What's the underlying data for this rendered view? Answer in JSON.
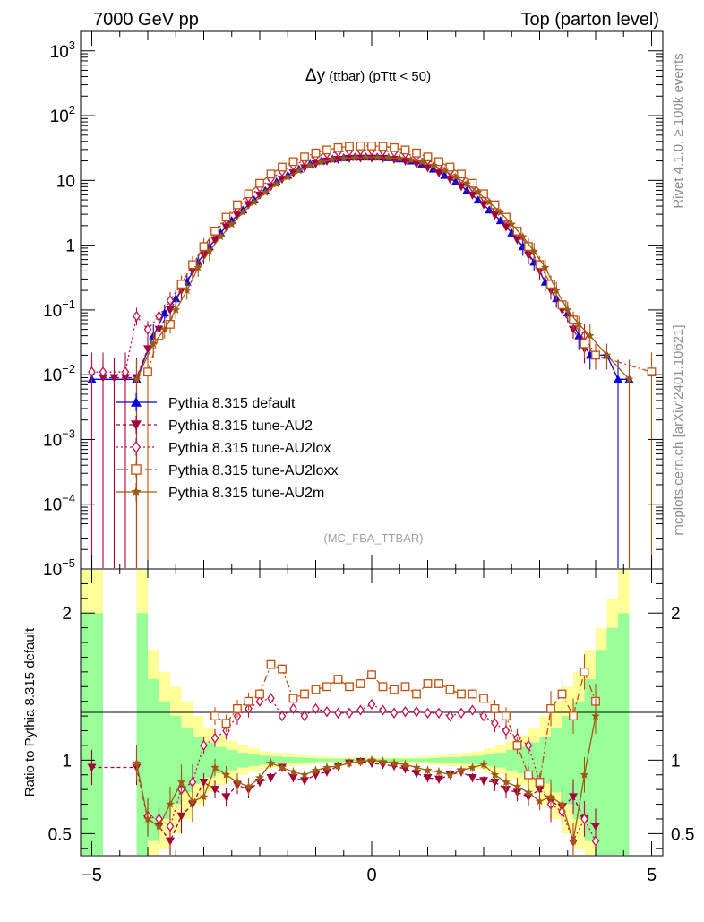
{
  "header": {
    "left": "7000 GeV pp",
    "right": "Top (parton level)",
    "side_rivet": "Rivet 4.1.0, ≥ 100k events",
    "side_mcplots": "mcplots.cern.ch [arXiv:2401.10621]"
  },
  "chart_data": [
    {
      "type": "line",
      "title_symbol": "Δy",
      "title_rest": " (ttbar) (pTtt < 50)",
      "watermark": "(MC_FBA_TTBAR)",
      "yscale": "log",
      "ylim": [
        1e-05,
        2000
      ],
      "xlim": [
        -5.2,
        5.2
      ],
      "ytick_labels": [
        {
          "exp": 3,
          "base": "10",
          "sup": "3"
        },
        {
          "exp": 2,
          "base": "10",
          "sup": "2"
        },
        {
          "exp": 1,
          "base": "10",
          "sup": ""
        },
        {
          "exp": 0,
          "base": "1",
          "sup": ""
        },
        {
          "exp": -1,
          "base": "10",
          "sup": "−1"
        },
        {
          "exp": -2,
          "base": "10",
          "sup": "−2"
        },
        {
          "exp": -3,
          "base": "10",
          "sup": "−3"
        },
        {
          "exp": -4,
          "base": "10",
          "sup": "−4"
        },
        {
          "exp": -5,
          "base": "10",
          "sup": "−5"
        }
      ],
      "series": [
        {
          "name": "Pythia 8.315 default",
          "color": "#0000e0",
          "marker": "triangle-up",
          "dash": "",
          "x": [
            -5.0,
            -4.2,
            -3.9,
            -3.7,
            -3.5,
            -3.3,
            -3.1,
            -2.9,
            -2.7,
            -2.5,
            -2.3,
            -2.1,
            -1.9,
            -1.7,
            -1.5,
            -1.3,
            -1.1,
            -0.9,
            -0.7,
            -0.5,
            -0.3,
            -0.1,
            0.1,
            0.3,
            0.5,
            0.7,
            0.9,
            1.1,
            1.3,
            1.5,
            1.7,
            1.9,
            2.1,
            2.3,
            2.5,
            2.7,
            2.9,
            3.1,
            3.3,
            3.5,
            3.7,
            3.9,
            4.2,
            4.4,
            4.6
          ],
          "y": [
            0.0085,
            0.0085,
            0.04,
            0.09,
            0.15,
            0.27,
            0.55,
            0.95,
            1.55,
            2.4,
            3.5,
            5.0,
            7.0,
            9.5,
            12.0,
            15.0,
            18.0,
            20.0,
            21.5,
            22.5,
            23.0,
            23.0,
            23.0,
            22.5,
            21.5,
            20.0,
            18.0,
            15.0,
            12.0,
            9.5,
            7.0,
            5.0,
            3.5,
            2.4,
            1.55,
            0.95,
            0.55,
            0.27,
            0.15,
            0.09,
            0.04,
            0.02,
            0.02,
            0.0085,
            0.0085
          ]
        },
        {
          "name": "Pythia 8.315 tune-AU2",
          "color": "#a0003a",
          "marker": "triangle-down",
          "dash": "4,3",
          "x": [
            -4.8,
            -4.6,
            -4.4,
            -4.2,
            -4.0,
            -3.8,
            -3.6,
            -3.4,
            -3.2,
            -3.0,
            -2.8,
            -2.6,
            -2.4,
            -2.2,
            -2.0,
            -1.8,
            -1.6,
            -1.4,
            -1.2,
            -1.0,
            -0.8,
            -0.6,
            -0.4,
            -0.2,
            0.0,
            0.2,
            0.4,
            0.6,
            0.8,
            1.0,
            1.2,
            1.4,
            1.6,
            1.8,
            2.0,
            2.2,
            2.4,
            2.6,
            2.8,
            3.0,
            3.2,
            3.4,
            3.6,
            3.8
          ],
          "y": [
            0.009,
            0.009,
            0.009,
            0.009,
            0.025,
            0.05,
            0.1,
            0.2,
            0.4,
            0.7,
            1.2,
            1.9,
            2.9,
            4.2,
            5.9,
            8.0,
            10.4,
            13.0,
            15.6,
            18.0,
            19.8,
            21.0,
            21.8,
            22.0,
            22.0,
            21.8,
            21.0,
            19.8,
            18.0,
            15.6,
            13.0,
            10.4,
            8.0,
            5.9,
            4.2,
            2.9,
            1.9,
            1.2,
            0.7,
            0.4,
            0.2,
            0.1,
            0.05,
            0.025
          ]
        },
        {
          "name": "Pythia 8.315 tune-AU2lox",
          "color": "#c0104a",
          "marker": "diamond-open",
          "dash": "2,3",
          "x": [
            -5.0,
            -4.8,
            -4.4,
            -4.2,
            -4.0,
            -3.8,
            -3.6,
            -3.4,
            -3.2,
            -3.0,
            -2.8,
            -2.6,
            -2.4,
            -2.2,
            -2.0,
            -1.8,
            -1.6,
            -1.4,
            -1.2,
            -1.0,
            -0.8,
            -0.6,
            -0.4,
            -0.2,
            0.0,
            0.2,
            0.4,
            0.6,
            0.8,
            1.0,
            1.2,
            1.4,
            1.6,
            1.8,
            2.0,
            2.2,
            2.4,
            2.6,
            2.8,
            3.0,
            3.2,
            3.4,
            3.6,
            3.8,
            4.0
          ],
          "y": [
            0.011,
            0.011,
            0.011,
            0.08,
            0.05,
            0.08,
            0.14,
            0.25,
            0.5,
            0.9,
            1.55,
            2.5,
            3.8,
            5.5,
            7.8,
            10.5,
            13.8,
            17.0,
            20.5,
            23.5,
            26.0,
            27.5,
            28.5,
            29.0,
            29.0,
            28.5,
            27.5,
            26.0,
            23.5,
            20.5,
            17.0,
            13.8,
            10.5,
            7.8,
            5.5,
            3.8,
            2.5,
            1.55,
            0.9,
            0.5,
            0.25,
            0.12,
            0.07,
            0.04,
            0.02
          ]
        },
        {
          "name": "Pythia 8.315 tune-AU2loxx",
          "color": "#c05010",
          "marker": "square-open",
          "dash": "8,3,2,3",
          "x": [
            -4.0,
            -3.8,
            -3.6,
            -3.4,
            -3.2,
            -3.0,
            -2.8,
            -2.6,
            -2.4,
            -2.2,
            -2.0,
            -1.8,
            -1.6,
            -1.4,
            -1.2,
            -1.0,
            -0.8,
            -0.6,
            -0.4,
            -0.2,
            0.0,
            0.2,
            0.4,
            0.6,
            0.8,
            1.0,
            1.2,
            1.4,
            1.6,
            1.8,
            2.0,
            2.2,
            2.4,
            2.6,
            2.8,
            3.0,
            3.2,
            3.4,
            3.6,
            3.8,
            4.0,
            5.0
          ],
          "y": [
            0.011,
            0.04,
            0.06,
            0.25,
            0.5,
            0.95,
            1.65,
            2.7,
            4.2,
            6.2,
            9.0,
            12.5,
            16.0,
            19.5,
            23.0,
            26.5,
            29.5,
            32.0,
            33.5,
            34.0,
            34.0,
            33.5,
            32.0,
            29.5,
            26.5,
            23.0,
            19.5,
            16.0,
            12.5,
            9.0,
            6.2,
            4.2,
            2.7,
            1.65,
            0.95,
            0.5,
            0.25,
            0.12,
            0.07,
            0.03,
            0.02,
            0.011
          ]
        },
        {
          "name": "Pythia 8.315 tune-AU2m",
          "color": "#a05a10",
          "marker": "star",
          "dash": "",
          "x": [
            -4.2,
            -3.9,
            -3.7,
            -3.5,
            -3.3,
            -3.1,
            -2.9,
            -2.7,
            -2.5,
            -2.3,
            -2.1,
            -1.9,
            -1.7,
            -1.5,
            -1.3,
            -1.1,
            -0.9,
            -0.7,
            -0.5,
            -0.3,
            -0.1,
            0.1,
            0.3,
            0.5,
            0.7,
            0.9,
            1.1,
            1.3,
            1.5,
            1.7,
            1.9,
            2.1,
            2.3,
            2.5,
            2.7,
            2.9,
            3.1,
            3.3,
            3.5,
            3.7,
            3.9,
            4.2,
            4.6
          ],
          "y": [
            0.0085,
            0.03,
            0.05,
            0.1,
            0.2,
            0.45,
            0.8,
            1.35,
            2.1,
            3.2,
            4.6,
            6.5,
            8.8,
            11.3,
            14.2,
            17.0,
            19.2,
            20.8,
            21.8,
            22.3,
            22.5,
            22.5,
            22.3,
            21.8,
            20.8,
            19.2,
            17.0,
            14.2,
            11.3,
            8.8,
            6.5,
            4.6,
            3.2,
            2.1,
            1.35,
            0.8,
            0.45,
            0.2,
            0.1,
            0.06,
            0.04,
            0.02,
            0.0085
          ]
        }
      ]
    },
    {
      "type": "line",
      "ylabel": "Ratio to Pythia 8.315 default",
      "xlim": [
        -5.2,
        5.2
      ],
      "ylim": [
        0.35,
        2.3
      ],
      "yticks": [
        0.5,
        1,
        2
      ],
      "ytick_labels": [
        "0.5",
        "1",
        "2"
      ],
      "xticks": [
        -5,
        0,
        5
      ],
      "xtick_labels": [
        "−5",
        "0",
        "5"
      ],
      "reference": 1,
      "bands": {
        "edges": [
          -5.2,
          -4.8,
          -4.2,
          -4.0,
          -3.8,
          -3.6,
          -3.4,
          -3.2,
          -3.0,
          -2.8,
          -2.6,
          -2.4,
          -2.2,
          -2.0,
          -1.8,
          -1.6,
          -1.4,
          -1.2,
          -1.0,
          -0.8,
          -0.6,
          -0.4,
          -0.2,
          0.0,
          0.2,
          0.4,
          0.6,
          0.8,
          1.0,
          1.2,
          1.4,
          1.6,
          1.8,
          2.0,
          2.2,
          2.4,
          2.6,
          2.8,
          3.0,
          3.2,
          3.4,
          3.6,
          3.8,
          4.0,
          4.2,
          4.4,
          4.6
        ],
        "yellow": [
          2.4,
          0.0,
          2.4,
          1.75,
          1.6,
          1.5,
          1.4,
          1.3,
          1.22,
          1.17,
          1.13,
          1.1,
          1.08,
          1.06,
          1.05,
          1.04,
          1.035,
          1.03,
          1.025,
          1.02,
          1.02,
          1.02,
          1.02,
          1.02,
          1.02,
          1.02,
          1.02,
          1.025,
          1.03,
          1.035,
          1.04,
          1.05,
          1.06,
          1.08,
          1.1,
          1.13,
          1.17,
          1.22,
          1.3,
          1.4,
          1.5,
          1.6,
          1.75,
          1.9,
          2.1,
          2.4
        ],
        "green": [
          2.0,
          0.0,
          2.0,
          1.55,
          1.4,
          1.3,
          1.22,
          1.16,
          1.12,
          1.09,
          1.07,
          1.05,
          1.04,
          1.03,
          1.025,
          1.02,
          1.018,
          1.015,
          1.012,
          1.01,
          1.01,
          1.01,
          1.01,
          1.01,
          1.01,
          1.01,
          1.01,
          1.012,
          1.015,
          1.018,
          1.02,
          1.025,
          1.03,
          1.04,
          1.05,
          1.07,
          1.09,
          1.12,
          1.16,
          1.22,
          1.3,
          1.4,
          1.55,
          1.75,
          1.9,
          2.0
        ]
      },
      "series": [
        {
          "name": "Pythia 8.315 tune-AU2",
          "x": [
            -5.0,
            -4.2,
            -4.0,
            -3.8,
            -3.6,
            -3.4,
            -3.2,
            -3.0,
            -2.8,
            -2.6,
            -2.4,
            -2.2,
            -2.0,
            -1.8,
            -1.6,
            -1.4,
            -1.2,
            -1.0,
            -0.8,
            -0.6,
            -0.4,
            -0.2,
            0.0,
            0.2,
            0.4,
            0.6,
            0.8,
            1.0,
            1.2,
            1.4,
            1.6,
            1.8,
            2.0,
            2.2,
            2.4,
            2.6,
            2.8,
            3.0,
            3.2,
            3.4,
            3.6,
            3.8,
            4.0
          ],
          "y": [
            0.95,
            0.95,
            0.6,
            0.55,
            0.45,
            0.62,
            0.7,
            0.85,
            0.8,
            0.75,
            0.83,
            0.8,
            0.85,
            0.88,
            0.95,
            0.88,
            0.86,
            0.9,
            0.92,
            0.96,
            0.98,
            0.99,
            0.98,
            0.97,
            0.96,
            0.94,
            0.91,
            0.88,
            0.87,
            0.9,
            0.92,
            0.88,
            0.86,
            0.85,
            0.8,
            0.78,
            0.75,
            0.8,
            0.72,
            0.68,
            0.75,
            0.6,
            0.55
          ]
        },
        {
          "name": "Pythia 8.315 tune-AU2lox",
          "x": [
            -4.0,
            -3.8,
            -3.6,
            -3.4,
            -3.2,
            -3.0,
            -2.8,
            -2.6,
            -2.4,
            -2.2,
            -2.0,
            -1.8,
            -1.6,
            -1.4,
            -1.2,
            -1.0,
            -0.8,
            -0.6,
            -0.4,
            -0.2,
            0.0,
            0.2,
            0.4,
            0.6,
            0.8,
            1.0,
            1.2,
            1.4,
            1.6,
            1.8,
            2.0,
            2.2,
            2.4,
            2.6,
            2.8,
            3.0,
            3.2,
            3.4,
            3.6,
            3.8,
            4.0
          ],
          "y": [
            0.62,
            0.6,
            0.55,
            0.8,
            0.85,
            1.1,
            1.15,
            1.2,
            1.3,
            1.35,
            1.4,
            1.42,
            1.3,
            1.35,
            1.3,
            1.35,
            1.33,
            1.32,
            1.32,
            1.34,
            1.38,
            1.34,
            1.32,
            1.33,
            1.33,
            1.32,
            1.32,
            1.3,
            1.32,
            1.34,
            1.3,
            1.25,
            1.2,
            1.15,
            1.1,
            0.85,
            0.7,
            0.65,
            0.45,
            0.6,
            0.45
          ]
        },
        {
          "name": "Pythia 8.315 tune-AU2loxx",
          "x": [
            -2.8,
            -2.6,
            -2.4,
            -2.2,
            -2.0,
            -1.8,
            -1.6,
            -1.4,
            -1.2,
            -1.0,
            -0.8,
            -0.6,
            -0.4,
            -0.2,
            0.0,
            0.2,
            0.4,
            0.6,
            0.8,
            1.0,
            1.2,
            1.4,
            1.6,
            1.8,
            2.0,
            2.2,
            2.4,
            2.6,
            2.8,
            3.0,
            3.2,
            3.4,
            3.6,
            3.8,
            4.0
          ],
          "y": [
            1.3,
            1.25,
            1.35,
            1.4,
            1.45,
            1.65,
            1.62,
            1.42,
            1.45,
            1.48,
            1.5,
            1.55,
            1.5,
            1.52,
            1.58,
            1.5,
            1.48,
            1.5,
            1.45,
            1.52,
            1.52,
            1.48,
            1.45,
            1.45,
            1.42,
            1.35,
            1.3,
            1.1,
            0.9,
            0.85,
            1.35,
            1.45,
            1.3,
            1.6,
            1.4
          ]
        },
        {
          "name": "Pythia 8.315 tune-AU2m",
          "x": [
            -4.2,
            -4.0,
            -3.8,
            -3.6,
            -3.4,
            -3.2,
            -3.0,
            -2.8,
            -2.6,
            -2.4,
            -2.2,
            -2.0,
            -1.8,
            -1.6,
            -1.4,
            -1.2,
            -1.0,
            -0.8,
            -0.6,
            -0.4,
            -0.2,
            0.0,
            0.2,
            0.4,
            0.6,
            0.8,
            1.0,
            1.2,
            1.4,
            1.6,
            1.8,
            2.0,
            2.2,
            2.4,
            2.6,
            2.8,
            3.0,
            3.2,
            3.4,
            3.6,
            3.8,
            4.0
          ],
          "y": [
            0.98,
            0.6,
            0.55,
            0.7,
            0.85,
            0.72,
            0.75,
            0.95,
            0.9,
            0.85,
            0.82,
            0.88,
            0.98,
            0.95,
            0.92,
            0.9,
            0.93,
            0.95,
            0.96,
            0.98,
            0.99,
            1.0,
            0.99,
            0.98,
            0.97,
            0.95,
            0.93,
            0.92,
            0.9,
            0.93,
            0.95,
            0.97,
            0.9,
            0.85,
            0.82,
            0.78,
            0.72,
            0.75,
            0.7,
            0.45,
            0.9,
            1.3
          ]
        }
      ]
    }
  ]
}
